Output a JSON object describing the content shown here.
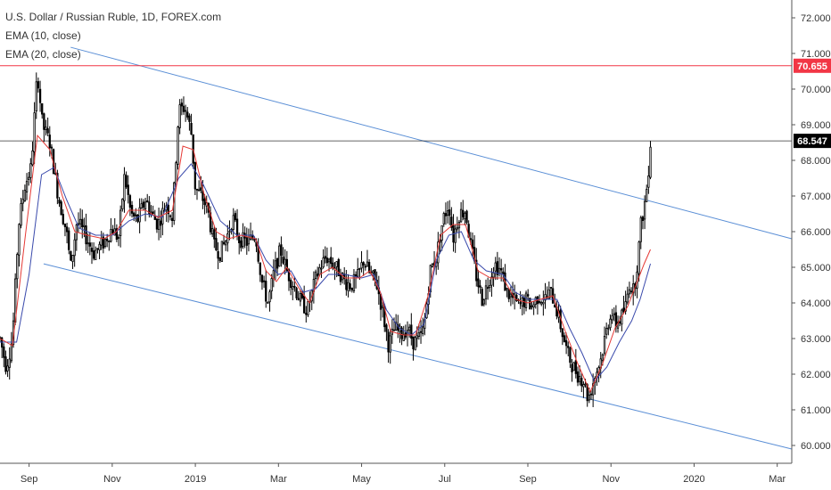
{
  "legend": {
    "symbol_line": "U.S. Dollar / Russian Ruble, 1D, FOREX.com",
    "ema10_line": "EMA (10, close)",
    "ema20_line": "EMA (20, close)"
  },
  "colors": {
    "candle_up": "#ffffff",
    "candle_down": "#000000",
    "candle_border": "#000000",
    "ema10": "#e53935",
    "ema20": "#3949ab",
    "channel": "#5b8fd6",
    "resistance": "#f23645",
    "current_price_line": "#000000",
    "axis_text": "#333333",
    "axis_line": "#555555"
  },
  "chart_data": {
    "type": "candlestick",
    "title": "U.S. Dollar / Russian Ruble, 1D, FOREX.com",
    "ylim": [
      59.6,
      72.4
    ],
    "grid": false,
    "y_ticks": [
      "72.000",
      "71.000",
      "70.000",
      "69.000",
      "68.000",
      "67.000",
      "66.000",
      "65.000",
      "64.000",
      "63.000",
      "62.000",
      "61.000",
      "60.000"
    ],
    "y_tick_values": [
      72,
      71,
      70,
      69,
      68,
      67,
      66,
      65,
      64,
      63,
      62,
      61,
      60
    ],
    "x_ticks": [
      "Sep",
      "Nov",
      "2019",
      "Mar",
      "May",
      "Jul",
      "Sep",
      "Nov",
      "2020",
      "Mar"
    ],
    "x_tick_months": [
      1,
      3,
      5,
      7,
      9,
      11,
      13,
      15,
      17,
      19
    ],
    "x_range_months": [
      0.3,
      19.35
    ],
    "price_path": [
      [
        0.3,
        63.0
      ],
      [
        0.45,
        62.2
      ],
      [
        0.6,
        63.0
      ],
      [
        0.75,
        66.2
      ],
      [
        0.9,
        67.3
      ],
      [
        1.05,
        67.8
      ],
      [
        1.2,
        70.5
      ],
      [
        1.32,
        69.0
      ],
      [
        1.5,
        68.5
      ],
      [
        1.7,
        67.0
      ],
      [
        1.9,
        66.0
      ],
      [
        2.0,
        65.0
      ],
      [
        2.15,
        66.3
      ],
      [
        2.35,
        65.9
      ],
      [
        2.55,
        65.4
      ],
      [
        2.8,
        65.7
      ],
      [
        3.0,
        66.1
      ],
      [
        3.15,
        65.8
      ],
      [
        3.3,
        67.6
      ],
      [
        3.45,
        66.5
      ],
      [
        3.6,
        66.3
      ],
      [
        3.8,
        66.9
      ],
      [
        3.95,
        66.5
      ],
      [
        4.1,
        66.2
      ],
      [
        4.3,
        66.8
      ],
      [
        4.45,
        66.4
      ],
      [
        4.6,
        69.4
      ],
      [
        4.75,
        69.5
      ],
      [
        4.9,
        68.8
      ],
      [
        5.0,
        67.2
      ],
      [
        5.15,
        67.0
      ],
      [
        5.3,
        66.6
      ],
      [
        5.45,
        65.6
      ],
      [
        5.6,
        65.4
      ],
      [
        5.75,
        65.8
      ],
      [
        5.9,
        66.4
      ],
      [
        6.05,
        65.8
      ],
      [
        6.25,
        65.7
      ],
      [
        6.45,
        65.9
      ],
      [
        6.6,
        64.6
      ],
      [
        6.75,
        64.0
      ],
      [
        6.9,
        64.9
      ],
      [
        7.05,
        65.5
      ],
      [
        7.2,
        64.9
      ],
      [
        7.4,
        64.4
      ],
      [
        7.55,
        64.0
      ],
      [
        7.7,
        63.8
      ],
      [
        7.9,
        64.7
      ],
      [
        8.0,
        65.0
      ],
      [
        8.15,
        65.3
      ],
      [
        8.3,
        65.1
      ],
      [
        8.45,
        64.9
      ],
      [
        8.6,
        64.6
      ],
      [
        8.75,
        64.5
      ],
      [
        8.9,
        64.7
      ],
      [
        9.05,
        65.2
      ],
      [
        9.2,
        64.8
      ],
      [
        9.35,
        64.6
      ],
      [
        9.5,
        63.8
      ],
      [
        9.65,
        62.8
      ],
      [
        9.8,
        63.3
      ],
      [
        9.95,
        63.1
      ],
      [
        10.1,
        63.3
      ],
      [
        10.25,
        62.9
      ],
      [
        10.4,
        63.0
      ],
      [
        10.5,
        63.3
      ],
      [
        10.65,
        64.9
      ],
      [
        10.8,
        65.3
      ],
      [
        10.95,
        66.3
      ],
      [
        11.1,
        66.8
      ],
      [
        11.2,
        65.8
      ],
      [
        11.35,
        66.5
      ],
      [
        11.5,
        66.6
      ],
      [
        11.6,
        65.8
      ],
      [
        11.75,
        64.8
      ],
      [
        11.9,
        64.1
      ],
      [
        12.05,
        64.6
      ],
      [
        12.2,
        65.1
      ],
      [
        12.35,
        64.9
      ],
      [
        12.5,
        64.3
      ],
      [
        12.65,
        64.1
      ],
      [
        12.8,
        63.9
      ],
      [
        12.95,
        64.1
      ],
      [
        13.1,
        63.9
      ],
      [
        13.25,
        64.2
      ],
      [
        13.4,
        64.1
      ],
      [
        13.55,
        64.3
      ],
      [
        13.65,
        64.0
      ],
      [
        13.8,
        63.3
      ],
      [
        13.95,
        62.6
      ],
      [
        14.05,
        62.3
      ],
      [
        14.2,
        62.0
      ],
      [
        14.35,
        61.8
      ],
      [
        14.45,
        61.3
      ],
      [
        14.6,
        61.9
      ],
      [
        14.75,
        62.4
      ],
      [
        14.85,
        63.0
      ],
      [
        15.0,
        63.8
      ],
      [
        15.1,
        63.4
      ],
      [
        15.25,
        63.6
      ],
      [
        15.35,
        63.9
      ],
      [
        15.45,
        64.6
      ],
      [
        15.55,
        64.3
      ],
      [
        15.65,
        65.3
      ],
      [
        15.72,
        66.2
      ],
      [
        15.8,
        66.7
      ],
      [
        15.88,
        67.4
      ],
      [
        15.95,
        68.5
      ]
    ],
    "ema10_path": [
      [
        0.3,
        63.0
      ],
      [
        0.6,
        62.8
      ],
      [
        0.9,
        65.8
      ],
      [
        1.2,
        68.7
      ],
      [
        1.5,
        68.3
      ],
      [
        1.8,
        67.0
      ],
      [
        2.1,
        66.0
      ],
      [
        2.4,
        65.9
      ],
      [
        2.8,
        65.8
      ],
      [
        3.1,
        66.0
      ],
      [
        3.4,
        66.6
      ],
      [
        3.8,
        66.6
      ],
      [
        4.1,
        66.4
      ],
      [
        4.45,
        66.6
      ],
      [
        4.7,
        68.4
      ],
      [
        4.95,
        68.3
      ],
      [
        5.2,
        67.1
      ],
      [
        5.5,
        66.0
      ],
      [
        5.8,
        65.8
      ],
      [
        6.1,
        65.9
      ],
      [
        6.45,
        65.8
      ],
      [
        6.7,
        64.9
      ],
      [
        6.95,
        64.6
      ],
      [
        7.2,
        65.0
      ],
      [
        7.5,
        64.4
      ],
      [
        7.75,
        64.0
      ],
      [
        8.0,
        64.8
      ],
      [
        8.3,
        65.0
      ],
      [
        8.6,
        64.7
      ],
      [
        8.95,
        64.7
      ],
      [
        9.2,
        64.9
      ],
      [
        9.45,
        64.3
      ],
      [
        9.7,
        63.2
      ],
      [
        10.0,
        63.1
      ],
      [
        10.3,
        63.1
      ],
      [
        10.6,
        64.2
      ],
      [
        10.9,
        65.9
      ],
      [
        11.2,
        66.2
      ],
      [
        11.5,
        66.2
      ],
      [
        11.8,
        64.9
      ],
      [
        12.1,
        64.7
      ],
      [
        12.4,
        64.7
      ],
      [
        12.7,
        64.1
      ],
      [
        13.0,
        64.0
      ],
      [
        13.3,
        64.1
      ],
      [
        13.6,
        64.2
      ],
      [
        13.9,
        63.2
      ],
      [
        14.2,
        62.3
      ],
      [
        14.5,
        61.5
      ],
      [
        14.8,
        62.3
      ],
      [
        15.1,
        63.3
      ],
      [
        15.4,
        63.9
      ],
      [
        15.6,
        64.5
      ],
      [
        15.8,
        65.1
      ],
      [
        15.95,
        65.5
      ]
    ],
    "ema20_path": [
      [
        0.3,
        62.9
      ],
      [
        0.7,
        62.9
      ],
      [
        1.0,
        64.8
      ],
      [
        1.3,
        67.6
      ],
      [
        1.6,
        67.8
      ],
      [
        1.9,
        66.9
      ],
      [
        2.2,
        66.1
      ],
      [
        2.6,
        65.9
      ],
      [
        3.0,
        65.9
      ],
      [
        3.4,
        66.3
      ],
      [
        3.8,
        66.5
      ],
      [
        4.2,
        66.4
      ],
      [
        4.6,
        67.5
      ],
      [
        4.9,
        67.9
      ],
      [
        5.2,
        67.3
      ],
      [
        5.6,
        66.3
      ],
      [
        6.0,
        65.9
      ],
      [
        6.4,
        65.9
      ],
      [
        6.7,
        65.2
      ],
      [
        7.0,
        64.8
      ],
      [
        7.3,
        64.9
      ],
      [
        7.6,
        64.3
      ],
      [
        7.9,
        64.4
      ],
      [
        8.2,
        64.8
      ],
      [
        8.6,
        64.8
      ],
      [
        9.0,
        64.7
      ],
      [
        9.3,
        64.8
      ],
      [
        9.6,
        63.8
      ],
      [
        9.9,
        63.3
      ],
      [
        10.2,
        63.1
      ],
      [
        10.5,
        63.4
      ],
      [
        10.8,
        65.2
      ],
      [
        11.1,
        65.9
      ],
      [
        11.4,
        66.0
      ],
      [
        11.7,
        65.2
      ],
      [
        12.0,
        64.9
      ],
      [
        12.4,
        64.8
      ],
      [
        12.7,
        64.3
      ],
      [
        13.0,
        64.1
      ],
      [
        13.4,
        64.1
      ],
      [
        13.7,
        64.1
      ],
      [
        14.0,
        63.3
      ],
      [
        14.3,
        62.6
      ],
      [
        14.6,
        61.8
      ],
      [
        14.9,
        62.2
      ],
      [
        15.2,
        62.9
      ],
      [
        15.5,
        63.5
      ],
      [
        15.7,
        64.1
      ],
      [
        15.85,
        64.7
      ],
      [
        15.95,
        65.1
      ]
    ],
    "channel_upper": [
      [
        0.3,
        71.7
      ],
      [
        19.35,
        65.8
      ]
    ],
    "channel_lower": [
      [
        0.3,
        65.4
      ],
      [
        19.35,
        59.9
      ]
    ],
    "channel_draw_start_months": [
      0.65,
      0.65
    ],
    "resistance_level": 70.655,
    "resistance_label": "70.655",
    "current_price": 68.547,
    "current_price_label": "68.547"
  }
}
